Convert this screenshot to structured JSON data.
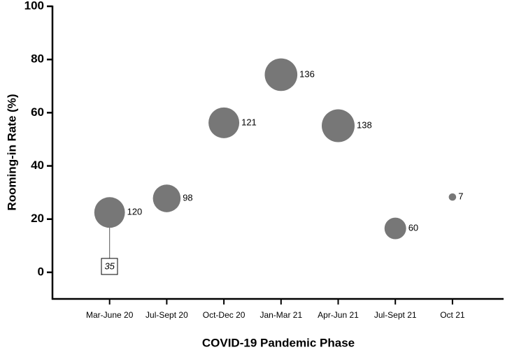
{
  "chart_data": {
    "type": "bubble",
    "xlabel": "COVID-19 Pandemic Phase",
    "ylabel": "Rooming-in Rate (%)",
    "categories": [
      "Mar-June 20",
      "Jul-Sept 20",
      "Oct-Dec 20",
      "Jan-Mar 21",
      "Apr-Jun 21",
      "Jul-Sept 21",
      "Oct 21"
    ],
    "values": [
      22.5,
      27.8,
      56.2,
      74.3,
      55.1,
      16.5,
      28.3
    ],
    "sizes": [
      120,
      98,
      121,
      136,
      138,
      60,
      7
    ],
    "color": "#777777",
    "ylim": [
      -10,
      100
    ],
    "yticks": [
      0,
      20,
      40,
      60,
      80,
      100
    ],
    "annotations": [
      "35"
    ]
  }
}
